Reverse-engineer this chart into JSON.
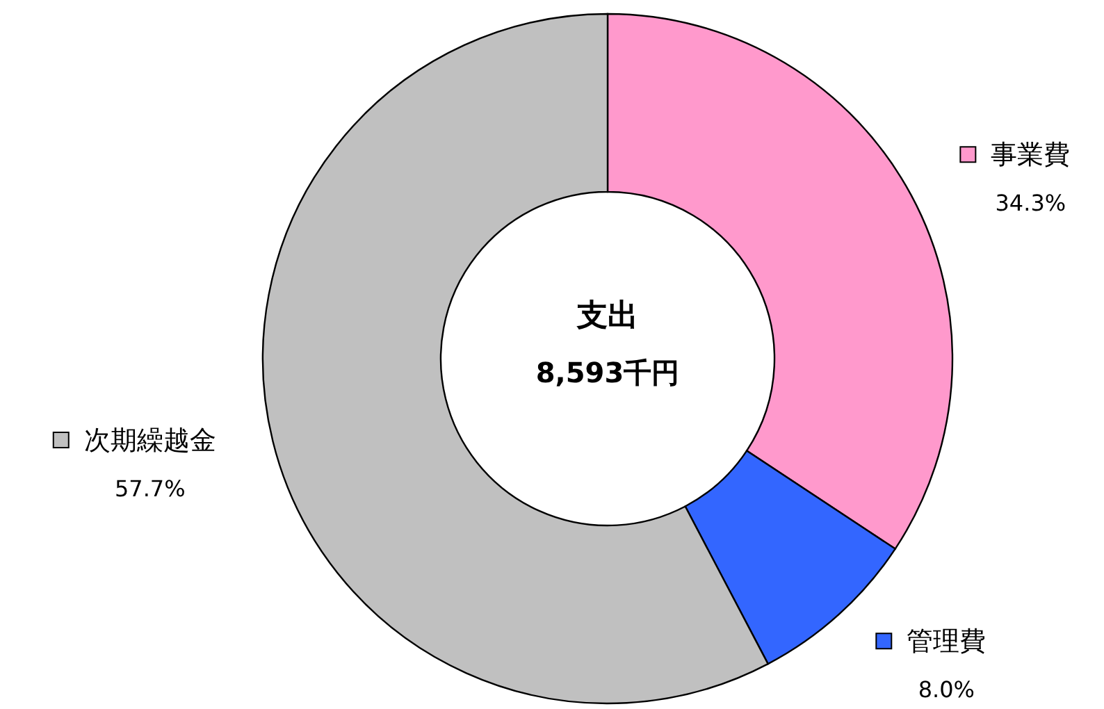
{
  "chart_data": {
    "type": "donut",
    "title": "支出",
    "subtitle": "8,593千円",
    "categories": [
      "事業費",
      "管理費",
      "次期繰越金"
    ],
    "values": [
      34.3,
      8.0,
      57.7
    ],
    "value_labels": [
      "34.3%",
      "8.0%",
      "57.7%"
    ],
    "colors": [
      "#ff99cc",
      "#3366ff",
      "#c0c0c0"
    ],
    "legend": "bottom left"
  }
}
